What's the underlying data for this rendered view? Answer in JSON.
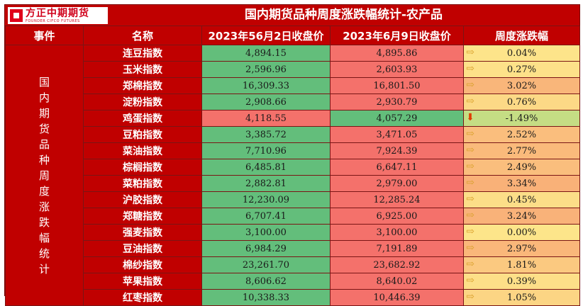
{
  "logo": {
    "cn": "方正中期期货",
    "en": "FOUNDER CIFCO FUTURES"
  },
  "title": "国内期货品种周度涨跌幅统计-农产品",
  "headers": {
    "event": "事件",
    "name": "名称",
    "close1": "2023年56月2日收盘价",
    "close2": "2023年6月9日收盘价",
    "change": "周度涨跌幅"
  },
  "event_label": "国内期货品种周度涨跌幅统计",
  "colors": {
    "header_red": "#c00000",
    "price_up_red": "#f4716b",
    "price_down_green": "#63be7b",
    "change_high": "#f9b47a",
    "change_low": "#fde58a",
    "change_neg": "#c5dd84"
  },
  "rows": [
    {
      "name": "连豆指数",
      "close1": "4,894.15",
      "close2": "4,895.86",
      "change": "0.04%",
      "dir": "flat",
      "icon": "arrow-right-icon"
    },
    {
      "name": "玉米指数",
      "close1": "2,596.96",
      "close2": "2,603.93",
      "change": "0.27%",
      "dir": "flat",
      "icon": "arrow-right-icon"
    },
    {
      "name": "郑棉指数",
      "close1": "16,309.33",
      "close2": "16,801.50",
      "change": "3.02%",
      "dir": "flat",
      "icon": "arrow-right-icon"
    },
    {
      "name": "淀粉指数",
      "close1": "2,908.66",
      "close2": "2,930.79",
      "change": "0.76%",
      "dir": "flat",
      "icon": "arrow-right-icon"
    },
    {
      "name": "鸡蛋指数",
      "close1": "4,118.55",
      "close2": "4,057.29",
      "change": "-1.49%",
      "dir": "down",
      "icon": "arrow-down-icon"
    },
    {
      "name": "豆粕指数",
      "close1": "3,385.72",
      "close2": "3,471.05",
      "change": "2.52%",
      "dir": "flat",
      "icon": "arrow-right-icon"
    },
    {
      "name": "菜油指数",
      "close1": "7,710.96",
      "close2": "7,924.39",
      "change": "2.77%",
      "dir": "flat",
      "icon": "arrow-right-icon"
    },
    {
      "name": "棕榈指数",
      "close1": "6,485.81",
      "close2": "6,647.11",
      "change": "2.49%",
      "dir": "flat",
      "icon": "arrow-right-icon"
    },
    {
      "name": "菜粕指数",
      "close1": "2,882.81",
      "close2": "2,979.00",
      "change": "3.34%",
      "dir": "flat",
      "icon": "arrow-right-icon"
    },
    {
      "name": "沪胶指数",
      "close1": "12,230.09",
      "close2": "12,285.24",
      "change": "0.45%",
      "dir": "flat",
      "icon": "arrow-right-icon"
    },
    {
      "name": "郑糖指数",
      "close1": "6,707.41",
      "close2": "6,925.00",
      "change": "3.24%",
      "dir": "flat",
      "icon": "arrow-right-icon"
    },
    {
      "name": "强麦指数",
      "close1": "3,100.00",
      "close2": "3,100.00",
      "change": "0.00%",
      "dir": "flat",
      "icon": "arrow-right-icon"
    },
    {
      "name": "豆油指数",
      "close1": "6,984.29",
      "close2": "7,191.89",
      "change": "2.97%",
      "dir": "flat",
      "icon": "arrow-right-icon"
    },
    {
      "name": "棉纱指数",
      "close1": "23,261.70",
      "close2": "23,682.92",
      "change": "1.81%",
      "dir": "flat",
      "icon": "arrow-right-icon"
    },
    {
      "name": "苹果指数",
      "close1": "8,606.62",
      "close2": "8,640.02",
      "change": "0.39%",
      "dir": "flat",
      "icon": "arrow-right-icon"
    },
    {
      "name": "红枣指数",
      "close1": "10,338.33",
      "close2": "10,446.39",
      "change": "1.05%",
      "dir": "flat",
      "icon": "arrow-right-icon"
    }
  ]
}
